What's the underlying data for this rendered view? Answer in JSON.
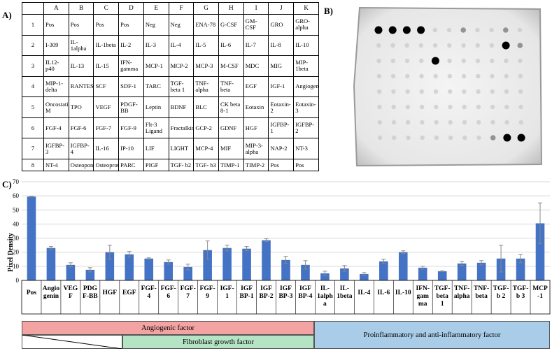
{
  "panel_a": {
    "label": "A)",
    "columns": [
      "",
      "A",
      "B",
      "C",
      "D",
      "E",
      "F",
      "G",
      "H",
      "I",
      "J",
      "K"
    ],
    "rows": [
      [
        "1",
        "Pos",
        "Pos",
        "Pos",
        "Pos",
        "Neg",
        "Neg",
        "ENA-78",
        "G-CSF",
        "GM-CSF",
        "GRO",
        "GRO-alpha"
      ],
      [
        "2",
        "I-309",
        "IL-1alpha",
        "IL-1beta",
        "IL-2",
        "IL-3",
        "IL-4",
        "IL-5",
        "IL-6",
        "IL-7",
        "IL-8",
        "IL-10"
      ],
      [
        "3",
        "IL12-p40",
        "IL-13",
        "IL-15",
        "IFN-gamma",
        "MCP-1",
        "MCP-2",
        "MCP-3",
        "M-CSF",
        "MDC",
        "MIG",
        "MIP-1beta"
      ],
      [
        "4",
        "MIP-1-delta",
        "RANTES",
        "SCF",
        "SDF-1",
        "TARC",
        "TGF-beta 1",
        "TNF-alpha",
        "TNF-beta",
        "EGF",
        "IGF-1",
        "Angiogenin"
      ],
      [
        "5",
        "Oncostatin M",
        "TPO",
        "VEGF",
        "PDGF-BB",
        "Leptin",
        "BDNF",
        "BLC",
        "CK beta 8-1",
        "Eotaxin",
        "Eotaxin-2",
        "Eotaxin-3"
      ],
      [
        "6",
        "FGF-4",
        "FGF-6",
        "FGF-7",
        "FGF-9",
        "Flt-3 Ligand",
        "Fractalkine",
        "GCP-2",
        "GDNF",
        "HGF",
        "IGFBP-1",
        "IGFBP-2"
      ],
      [
        "7",
        "IGFBP-3",
        "IGFBP-4",
        "IL-16",
        "IP-10",
        "LIF",
        "LIGHT",
        "MCP-4",
        "MIF",
        "MIP-3-alpha",
        "NAP-2",
        "NT-3"
      ],
      [
        "8",
        "NT-4",
        "Osteopontin",
        "Osteoprotegerin",
        "PARC",
        "PIGF",
        "TGF- b2",
        "TGF- b3",
        "TIMP-1",
        "TIMP-2",
        "Pos",
        "Pos"
      ]
    ]
  },
  "panel_b": {
    "label": "B)"
  },
  "panel_c": {
    "label": "C)"
  },
  "chart_data": {
    "type": "bar",
    "ylabel": "Pixel Density",
    "ylim": [
      0,
      70
    ],
    "yticks": [
      0,
      10,
      20,
      30,
      40,
      50,
      60,
      70
    ],
    "grid": true,
    "bar_color": "#4472C4",
    "categories": [
      "Pos",
      "Angiogenin",
      "VEGF",
      "PDGF-BB",
      "HGF",
      "EGF",
      "FGF-4",
      "FGF-6",
      "FGF-7",
      "FGF-9",
      "IGF-1",
      "IGFBP-1",
      "IGFBP-2",
      "IGFBP-3",
      "IGFBP-4",
      "IL-1alpha",
      "IL-1beta",
      "IL-4",
      "IL-6",
      "IL-10",
      "IFN-gamma",
      "TGF-beta 1",
      "TNF-alpha",
      "TNF-beta",
      "TGF-b 2",
      "TGF-b 3",
      "MCP-1"
    ],
    "category_lines": [
      [
        "Pos"
      ],
      [
        "Angio",
        "genin"
      ],
      [
        "VEG",
        "F"
      ],
      [
        "PDG",
        "F-BB"
      ],
      [
        "HGF"
      ],
      [
        "EGF"
      ],
      [
        "FGF-",
        "4"
      ],
      [
        "FGF-",
        "6"
      ],
      [
        "FGF-",
        "7"
      ],
      [
        "FGF-",
        "9"
      ],
      [
        "IGF-",
        "1"
      ],
      [
        "IGF",
        "BP-1"
      ],
      [
        "IGF",
        "BP-2"
      ],
      [
        "IGF",
        "BP-3"
      ],
      [
        "IGF",
        "BP-4"
      ],
      [
        "IL-",
        "1alph",
        "a"
      ],
      [
        "IL-",
        "1beta"
      ],
      [
        "IL-4"
      ],
      [
        "IL-6"
      ],
      [
        "IL-10"
      ],
      [
        "IFN-",
        "gam",
        "ma"
      ],
      [
        "TGF-",
        "beta",
        "1"
      ],
      [
        "TNF-",
        "alpha"
      ],
      [
        "TNF-",
        "beta"
      ],
      [
        "TGF-",
        "b 2"
      ],
      [
        "TGF-",
        "b 3"
      ],
      [
        "MCP",
        "-1"
      ]
    ],
    "values": [
      59.5,
      23,
      11,
      7.5,
      20,
      18.5,
      15.5,
      13,
      9.5,
      21.5,
      23,
      22.5,
      28.5,
      14.5,
      11,
      5,
      8.5,
      4.5,
      13.5,
      20,
      9,
      6.5,
      12,
      12.5,
      15.5,
      15.5,
      40.5
    ],
    "errors": [
      0.3,
      1,
      1.5,
      1.5,
      5,
      2,
      0.5,
      1.5,
      2,
      6.5,
      2,
      1.5,
      1,
      2.5,
      3,
      1.5,
      2,
      1,
      1.5,
      1,
      1,
      0.3,
      1.5,
      1.5,
      9.5,
      3,
      14.5
    ]
  },
  "legend": {
    "angiogenic": "Angiogenic factor",
    "fibroblast": "Fibroblast growth factor",
    "proinflammatory": "Proinflammatory and anti-inflammatory factor",
    "colors": {
      "angiogenic": "#F4A3A3",
      "fibroblast": "#B5E4C4",
      "proinflammatory": "#A9CCE8"
    }
  }
}
